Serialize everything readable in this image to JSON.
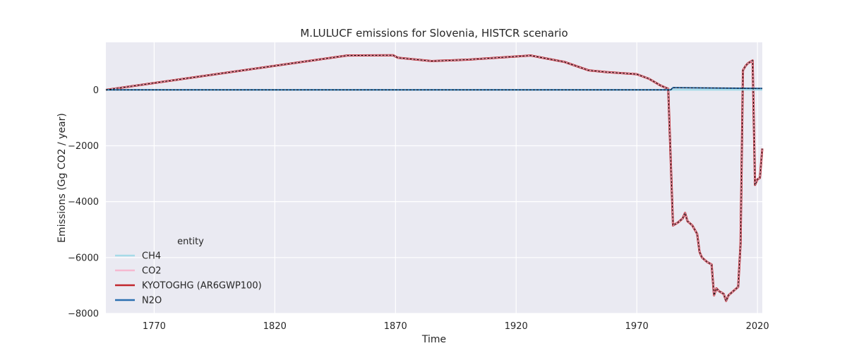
{
  "chart_data": {
    "type": "line",
    "title": "M.LULUCF emissions for Slovenia, HISTCR scenario",
    "xlabel": "Time",
    "ylabel": "Emissions (Gg CO2 / year)",
    "xlim": [
      1750,
      2022
    ],
    "ylim": [
      -8000,
      1700
    ],
    "x_ticks": [
      1770,
      1820,
      1870,
      1920,
      1970,
      2020
    ],
    "y_ticks": [
      -8000,
      -6000,
      -4000,
      -2000,
      0
    ],
    "y_tick_labels": [
      "−8000",
      "−6000",
      "−4000",
      "−2000",
      "0"
    ],
    "grid": true,
    "background_color": "#eaeaf2",
    "legend": {
      "title": "entity",
      "placement": "lower-left",
      "entries": [
        "CH4",
        "CO2",
        "KYOTOGHG (AR6GWP100)",
        "N2O"
      ]
    },
    "series": [
      {
        "name": "CH4",
        "color": "#a6dbe8",
        "points": [
          [
            1750,
            0
          ],
          [
            1984,
            0
          ],
          [
            1985,
            5
          ],
          [
            2022,
            5
          ]
        ]
      },
      {
        "name": "CO2",
        "color": "#f5b8d0",
        "points": [
          [
            1750,
            0
          ],
          [
            1850,
            1230
          ],
          [
            1869,
            1240
          ],
          [
            1871,
            1150
          ],
          [
            1885,
            1030
          ],
          [
            1900,
            1080
          ],
          [
            1926,
            1230
          ],
          [
            1940,
            1000
          ],
          [
            1950,
            700
          ],
          [
            1957,
            640
          ],
          [
            1970,
            560
          ],
          [
            1975,
            400
          ],
          [
            1980,
            150
          ],
          [
            1983,
            40
          ],
          [
            1985,
            -4850
          ],
          [
            1987,
            -4750
          ],
          [
            1989,
            -4600
          ],
          [
            1990,
            -4400
          ],
          [
            1991,
            -4700
          ],
          [
            1993,
            -4850
          ],
          [
            1995,
            -5150
          ],
          [
            1996,
            -5800
          ],
          [
            1997,
            -6000
          ],
          [
            1999,
            -6150
          ],
          [
            2001,
            -6250
          ],
          [
            2002,
            -7350
          ],
          [
            2003,
            -7100
          ],
          [
            2004,
            -7200
          ],
          [
            2006,
            -7300
          ],
          [
            2007,
            -7550
          ],
          [
            2008,
            -7350
          ],
          [
            2012,
            -7050
          ],
          [
            2013,
            -5500
          ],
          [
            2014,
            700
          ],
          [
            2015,
            850
          ],
          [
            2016,
            950
          ],
          [
            2017,
            1000
          ],
          [
            2018,
            1050
          ],
          [
            2019,
            -3400
          ],
          [
            2020,
            -3200
          ],
          [
            2021,
            -3150
          ],
          [
            2022,
            -2100
          ]
        ]
      },
      {
        "name": "KYOTOGHG (AR6GWP100)",
        "color": "#c1272d",
        "points": [
          [
            1750,
            0
          ],
          [
            1850,
            1230
          ],
          [
            1869,
            1240
          ],
          [
            1871,
            1150
          ],
          [
            1885,
            1030
          ],
          [
            1900,
            1080
          ],
          [
            1926,
            1230
          ],
          [
            1940,
            1000
          ],
          [
            1950,
            700
          ],
          [
            1957,
            640
          ],
          [
            1970,
            560
          ],
          [
            1975,
            400
          ],
          [
            1980,
            150
          ],
          [
            1983,
            40
          ],
          [
            1985,
            -4850
          ],
          [
            1987,
            -4750
          ],
          [
            1989,
            -4600
          ],
          [
            1990,
            -4400
          ],
          [
            1991,
            -4700
          ],
          [
            1993,
            -4850
          ],
          [
            1995,
            -5150
          ],
          [
            1996,
            -5800
          ],
          [
            1997,
            -6000
          ],
          [
            1999,
            -6150
          ],
          [
            2001,
            -6250
          ],
          [
            2002,
            -7350
          ],
          [
            2003,
            -7100
          ],
          [
            2004,
            -7200
          ],
          [
            2006,
            -7300
          ],
          [
            2007,
            -7550
          ],
          [
            2008,
            -7350
          ],
          [
            2012,
            -7050
          ],
          [
            2013,
            -5500
          ],
          [
            2014,
            700
          ],
          [
            2015,
            850
          ],
          [
            2016,
            950
          ],
          [
            2017,
            1000
          ],
          [
            2018,
            1050
          ],
          [
            2019,
            -3400
          ],
          [
            2020,
            -3200
          ],
          [
            2021,
            -3150
          ],
          [
            2022,
            -2100
          ]
        ]
      },
      {
        "name": "N2O",
        "color": "#2a6fb0",
        "points": [
          [
            1750,
            0
          ],
          [
            1984,
            0
          ],
          [
            1985,
            80
          ],
          [
            2022,
            50
          ]
        ]
      }
    ]
  }
}
